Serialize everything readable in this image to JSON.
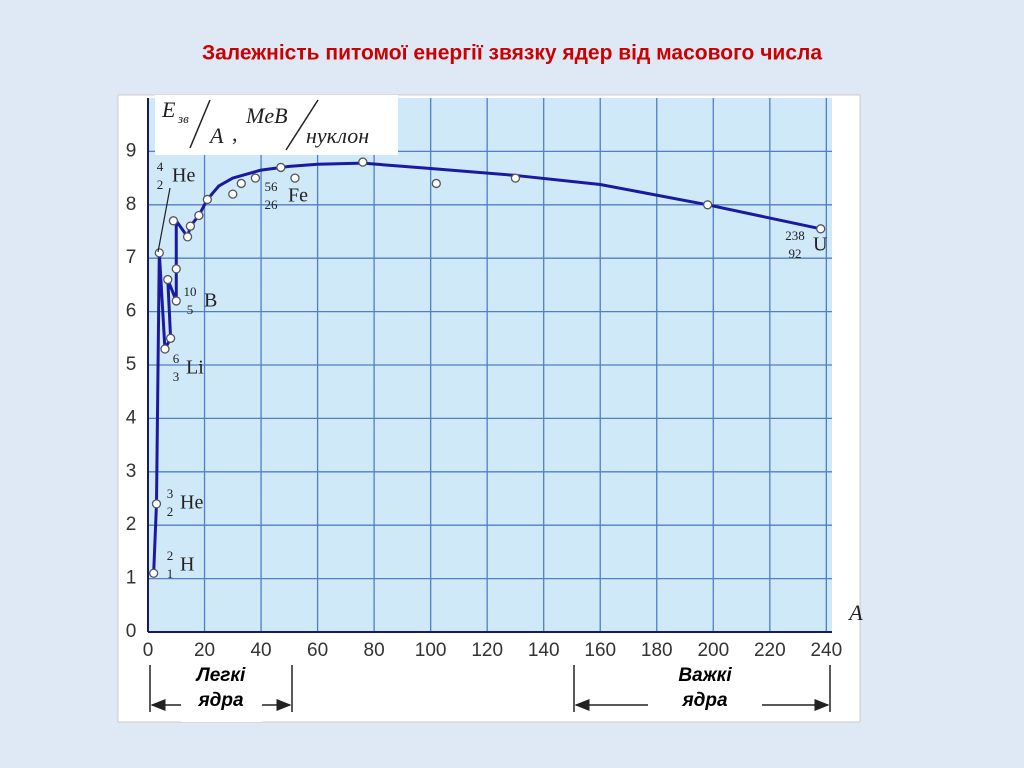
{
  "chart_data": {
    "type": "line",
    "title": "Залежність питомої енергії звязку ядер від масового числа",
    "y_label": {
      "e": "E",
      "sub": "зв",
      "a": "A",
      "comma": ",",
      "unit": "MeB",
      "per": "нуклон"
    },
    "x_label": "A",
    "xlim": [
      0,
      242
    ],
    "ylim": [
      0,
      10
    ],
    "xticks": [
      0,
      20,
      40,
      60,
      80,
      100,
      120,
      140,
      160,
      180,
      200,
      220,
      240
    ],
    "yticks": [
      0,
      1,
      2,
      3,
      4,
      5,
      6,
      7,
      8,
      9
    ],
    "grid": true,
    "series": [
      {
        "name": "curve",
        "color": "#1a1aa0",
        "x": [
          2,
          3,
          4,
          6,
          8,
          7,
          10,
          10,
          10,
          14,
          15,
          18,
          21,
          25,
          30,
          40,
          50,
          60,
          76,
          100,
          130,
          160,
          198,
          238
        ],
        "values": [
          1.1,
          2.4,
          7.1,
          5.3,
          5.5,
          6.6,
          6.2,
          6.8,
          7.7,
          7.4,
          7.6,
          7.8,
          8.1,
          8.35,
          8.5,
          8.65,
          8.72,
          8.76,
          8.78,
          8.68,
          8.55,
          8.38,
          8.0,
          7.55
        ]
      },
      {
        "name": "points",
        "color": "#ffffff",
        "x": [
          2,
          3,
          4,
          6,
          7,
          8,
          10,
          10,
          9,
          14,
          15,
          18,
          21,
          30,
          33,
          38,
          47,
          52,
          76,
          102,
          130,
          198,
          238
        ],
        "values": [
          1.1,
          2.4,
          7.1,
          5.3,
          6.6,
          5.5,
          6.8,
          6.2,
          7.7,
          7.4,
          7.6,
          7.8,
          8.1,
          8.2,
          8.4,
          8.5,
          8.7,
          8.5,
          8.8,
          8.4,
          8.5,
          8.0,
          7.55
        ]
      }
    ],
    "annotations": [
      {
        "mass": "2",
        "charge": "1",
        "symbol": "H"
      },
      {
        "mass": "3",
        "charge": "2",
        "symbol": "He"
      },
      {
        "mass": "4",
        "charge": "2",
        "symbol": "He"
      },
      {
        "mass": "10",
        "charge": "5",
        "symbol": "B"
      },
      {
        "mass": "6",
        "charge": "3",
        "symbol": "Li"
      },
      {
        "mass": "56",
        "charge": "26",
        "symbol": "Fe"
      },
      {
        "mass": "238",
        "charge": "92",
        "symbol": "U"
      }
    ],
    "ranges": [
      {
        "line1": "Легкі",
        "line2": "ядра"
      },
      {
        "line1": "Важкі",
        "line2": "ядра"
      }
    ]
  }
}
